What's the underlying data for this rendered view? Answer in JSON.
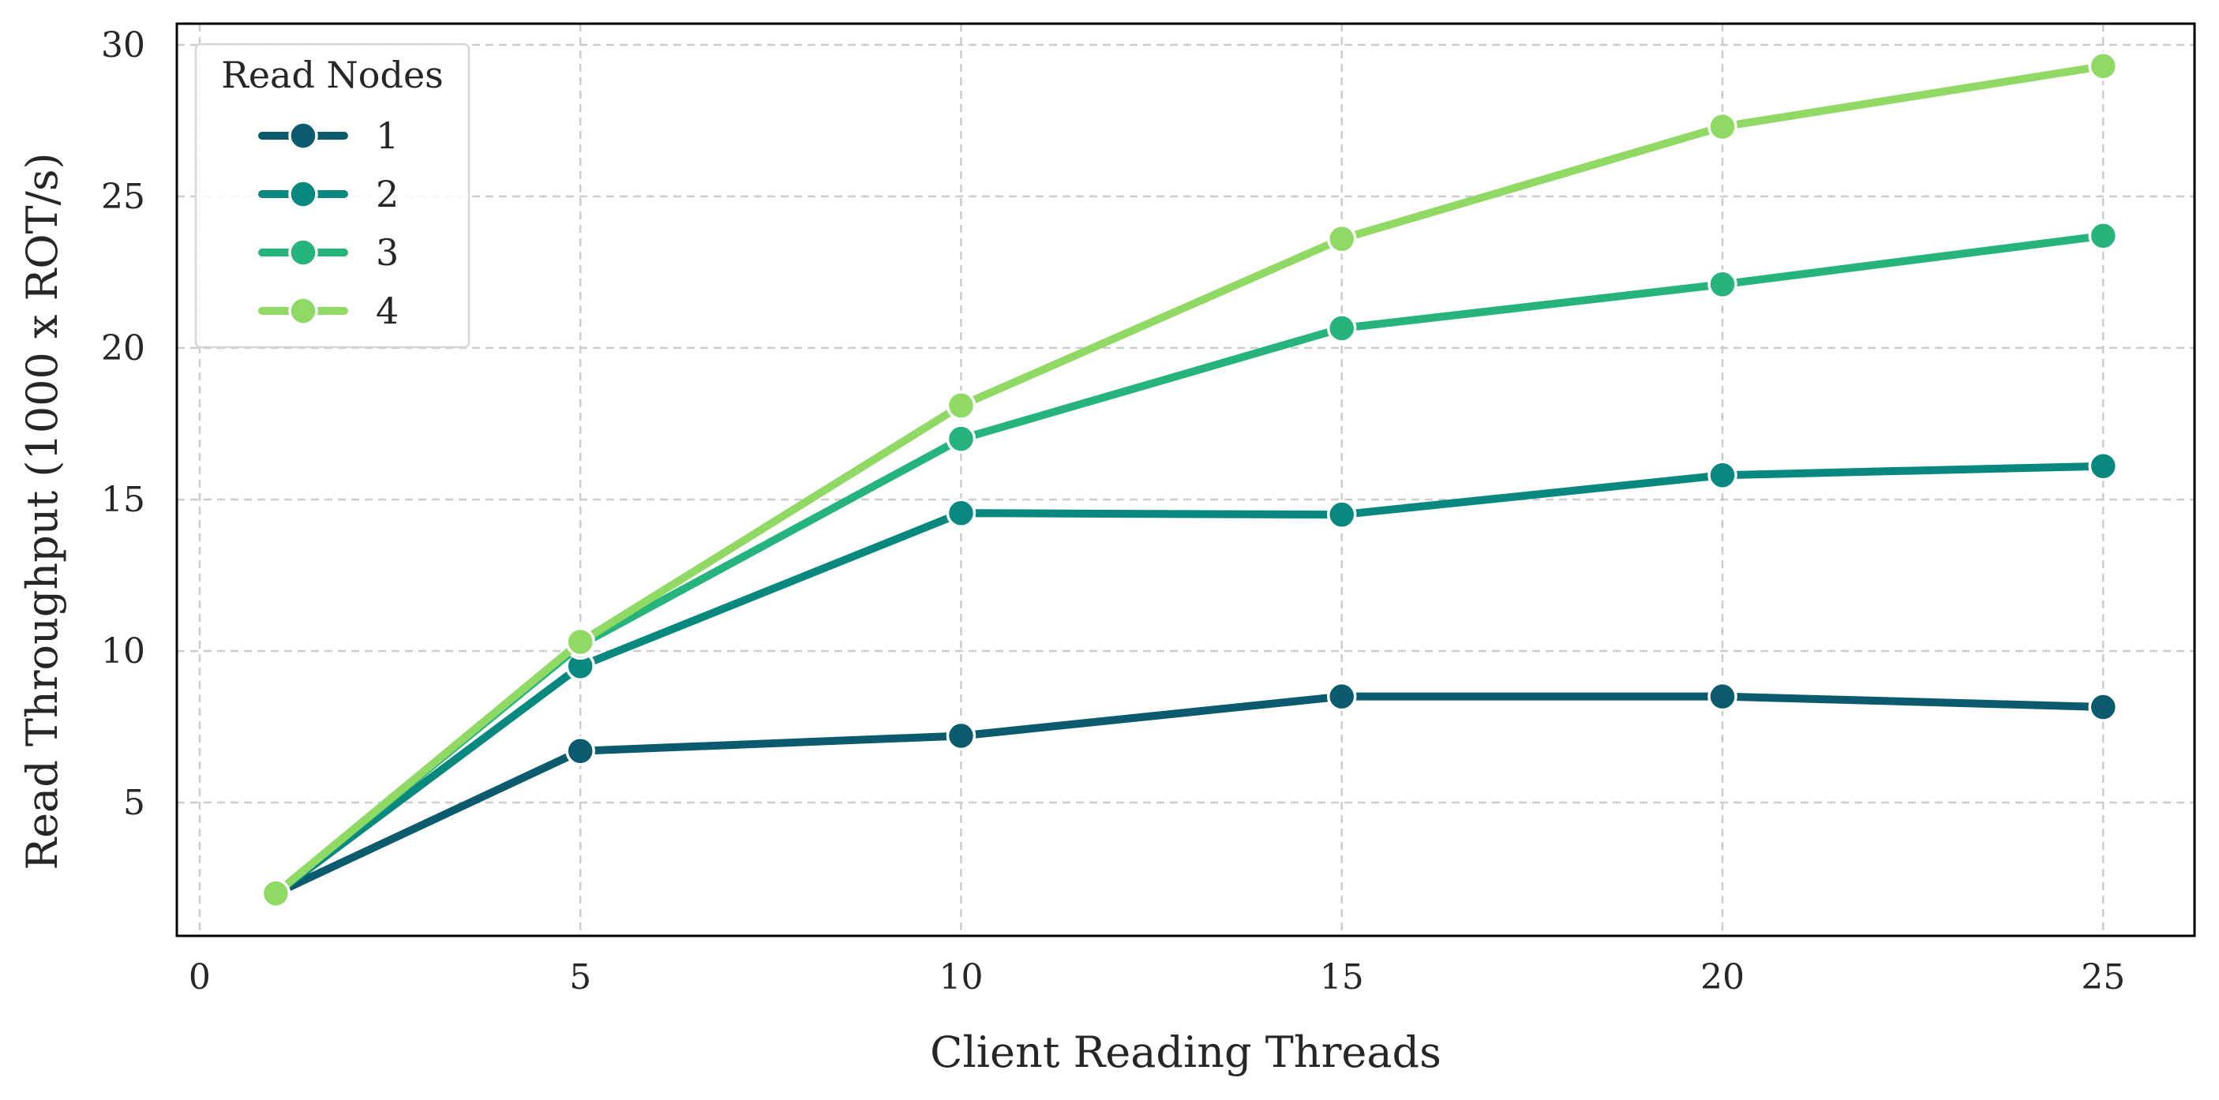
{
  "chart_data": {
    "type": "line",
    "xlabel": "Client Reading Threads",
    "ylabel": "Read Throughput (1000 x ROT/s)",
    "x": [
      1,
      5,
      10,
      15,
      20,
      25
    ],
    "xlim": [
      -0.3,
      26.2
    ],
    "ylim": [
      0.6,
      30.7
    ],
    "xticks": [
      0,
      5,
      10,
      15,
      20,
      25
    ],
    "yticks": [
      5,
      10,
      15,
      20,
      25,
      30
    ],
    "grid": true,
    "legend": {
      "title": "Read Nodes",
      "placement": "top-left"
    },
    "series": [
      {
        "name": "1",
        "color": "#0b5a6e",
        "values": [
          2.0,
          6.7,
          7.2,
          8.5,
          8.5,
          8.15
        ]
      },
      {
        "name": "2",
        "color": "#08887f",
        "values": [
          2.0,
          9.5,
          14.55,
          14.5,
          15.8,
          16.1
        ]
      },
      {
        "name": "3",
        "color": "#27b47c",
        "values": [
          2.0,
          10.2,
          17.0,
          20.65,
          22.1,
          23.7
        ]
      },
      {
        "name": "4",
        "color": "#8fd964",
        "values": [
          2.0,
          10.3,
          18.1,
          23.6,
          27.3,
          29.3
        ]
      }
    ]
  }
}
